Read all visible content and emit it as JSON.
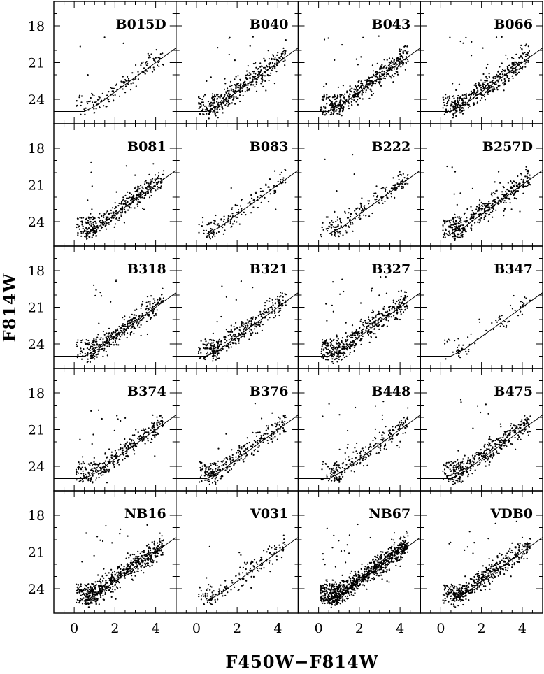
{
  "figure": {
    "xlabel": "F450W−F814W",
    "ylabel": "F814W"
  },
  "chart_data": {
    "type": "scatter",
    "xlim": [
      -1,
      5
    ],
    "ylim": [
      26,
      16
    ],
    "x_ticks": [
      0,
      2,
      4
    ],
    "y_ticks": [
      18,
      21,
      24
    ],
    "grid": false,
    "panels": [
      {
        "name": "B015D",
        "density": 150
      },
      {
        "name": "B040",
        "density": 420
      },
      {
        "name": "B043",
        "density": 480
      },
      {
        "name": "B066",
        "density": 440
      },
      {
        "name": "B081",
        "density": 420
      },
      {
        "name": "B083",
        "density": 150
      },
      {
        "name": "B222",
        "density": 200
      },
      {
        "name": "B257D",
        "density": 420
      },
      {
        "name": "B318",
        "density": 380
      },
      {
        "name": "B321",
        "density": 360
      },
      {
        "name": "B327",
        "density": 460
      },
      {
        "name": "B347",
        "density": 80
      },
      {
        "name": "B374",
        "density": 330
      },
      {
        "name": "B376",
        "density": 290
      },
      {
        "name": "B448",
        "density": 260
      },
      {
        "name": "B475",
        "density": 400
      },
      {
        "name": "NB16",
        "density": 640
      },
      {
        "name": "V031",
        "density": 170
      },
      {
        "name": "NB67",
        "density": 900
      },
      {
        "name": "VDB0",
        "density": 480
      }
    ],
    "fiducial_line": {
      "description": "",
      "x": [
        -1.0,
        0.5,
        1.2,
        2.0,
        3.0,
        4.0,
        5.0
      ],
      "y": [
        25.0,
        25.0,
        24.4,
        23.4,
        22.2,
        21.0,
        19.8
      ]
    }
  }
}
